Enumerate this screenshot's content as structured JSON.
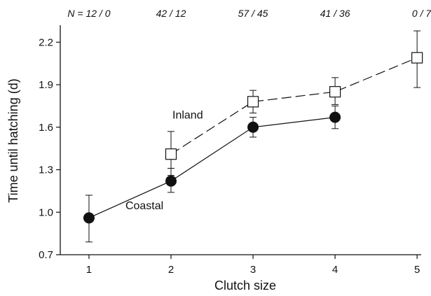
{
  "chart_data": {
    "type": "line",
    "xlabel": "Clutch size",
    "ylabel": "Time until hatching (d)",
    "xlim": [
      0.65,
      5.05
    ],
    "ylim": [
      0.7,
      2.32
    ],
    "xticks": [
      1,
      2,
      3,
      4,
      5
    ],
    "yticks": [
      0.7,
      1.0,
      1.3,
      1.6,
      1.9,
      2.2
    ],
    "ytick_labels": [
      "0.7",
      "1.0",
      "1.3",
      "1.6",
      "1.9",
      "2.2"
    ],
    "grid": false,
    "sample_sizes": [
      "N = 12 / 0",
      "42 / 12",
      "57 / 45",
      "41 / 36",
      "0 / 7"
    ],
    "series": [
      {
        "name": "Coastal",
        "marker": "filled-circle",
        "line": "solid",
        "x": [
          1,
          2,
          3,
          4
        ],
        "y": [
          0.96,
          1.22,
          1.6,
          1.67
        ],
        "err_low": [
          0.79,
          1.14,
          1.53,
          1.59
        ],
        "err_high": [
          1.12,
          1.31,
          1.67,
          1.75
        ]
      },
      {
        "name": "Inland",
        "marker": "open-square",
        "line": "dashed",
        "x": [
          2,
          3,
          4,
          5
        ],
        "y": [
          1.41,
          1.78,
          1.85,
          2.09
        ],
        "err_low": [
          1.26,
          1.7,
          1.76,
          1.88
        ],
        "err_high": [
          1.57,
          1.86,
          1.95,
          2.28
        ]
      }
    ]
  }
}
